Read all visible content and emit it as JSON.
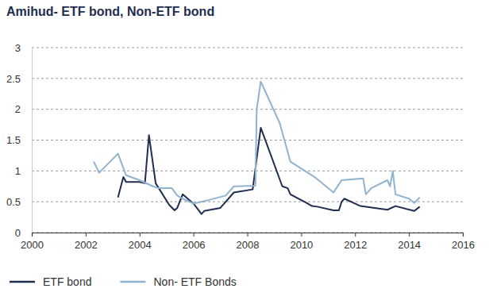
{
  "chart_data": {
    "type": "line",
    "title": "Amihud- ETF bond, Non-ETF bond",
    "xlim": [
      2000,
      2016
    ],
    "xticks": [
      2000,
      2002,
      2004,
      2006,
      2008,
      2010,
      2012,
      2014,
      2016
    ],
    "ylim": [
      0,
      3
    ],
    "yticks": [
      0,
      0.5,
      1,
      1.5,
      2,
      2.5,
      3
    ],
    "grid": true,
    "legend": "bottom",
    "series": [
      {
        "name": "ETF bond",
        "color": "#1f2d4f",
        "x": [
          2003.2,
          2003.4,
          2003.5,
          2004.0,
          2004.2,
          2004.35,
          2004.6,
          2005.1,
          2005.3,
          2005.4,
          2005.6,
          2006.0,
          2006.2,
          2006.3,
          2006.4,
          2007.0,
          2007.5,
          2008.2,
          2008.5,
          2009.3,
          2009.5,
          2009.6,
          2010.2,
          2010.4,
          2010.6,
          2011.2,
          2011.4,
          2011.5,
          2011.6,
          2012.2,
          2013.2,
          2013.5,
          2014.2,
          2014.4
        ],
        "values": [
          0.57,
          0.9,
          0.82,
          0.82,
          0.8,
          1.58,
          0.8,
          0.45,
          0.36,
          0.4,
          0.62,
          0.47,
          0.36,
          0.3,
          0.35,
          0.4,
          0.65,
          0.7,
          1.7,
          0.75,
          0.72,
          0.62,
          0.48,
          0.43,
          0.42,
          0.36,
          0.36,
          0.5,
          0.55,
          0.43,
          0.37,
          0.43,
          0.35,
          0.42
        ]
      },
      {
        "name": "Non- ETF Bonds",
        "color": "#8fb3d0",
        "x": [
          2002.3,
          2002.5,
          2003.2,
          2003.5,
          2004.0,
          2004.5,
          2004.7,
          2005.2,
          2005.4,
          2005.6,
          2006.0,
          2006.3,
          2006.5,
          2007.2,
          2007.5,
          2008.3,
          2008.35,
          2008.5,
          2009.2,
          2009.6,
          2010.5,
          2011.2,
          2011.5,
          2012.3,
          2012.4,
          2012.6,
          2013.2,
          2013.3,
          2013.4,
          2013.5,
          2014.0,
          2014.2,
          2014.4
        ],
        "values": [
          1.15,
          0.97,
          1.28,
          0.93,
          0.85,
          0.75,
          0.72,
          0.72,
          0.6,
          0.55,
          0.47,
          0.5,
          0.52,
          0.6,
          0.75,
          0.76,
          2.0,
          2.45,
          1.78,
          1.15,
          0.9,
          0.65,
          0.85,
          0.88,
          0.62,
          0.72,
          0.85,
          0.75,
          1.0,
          0.62,
          0.55,
          0.48,
          0.57
        ]
      }
    ]
  }
}
